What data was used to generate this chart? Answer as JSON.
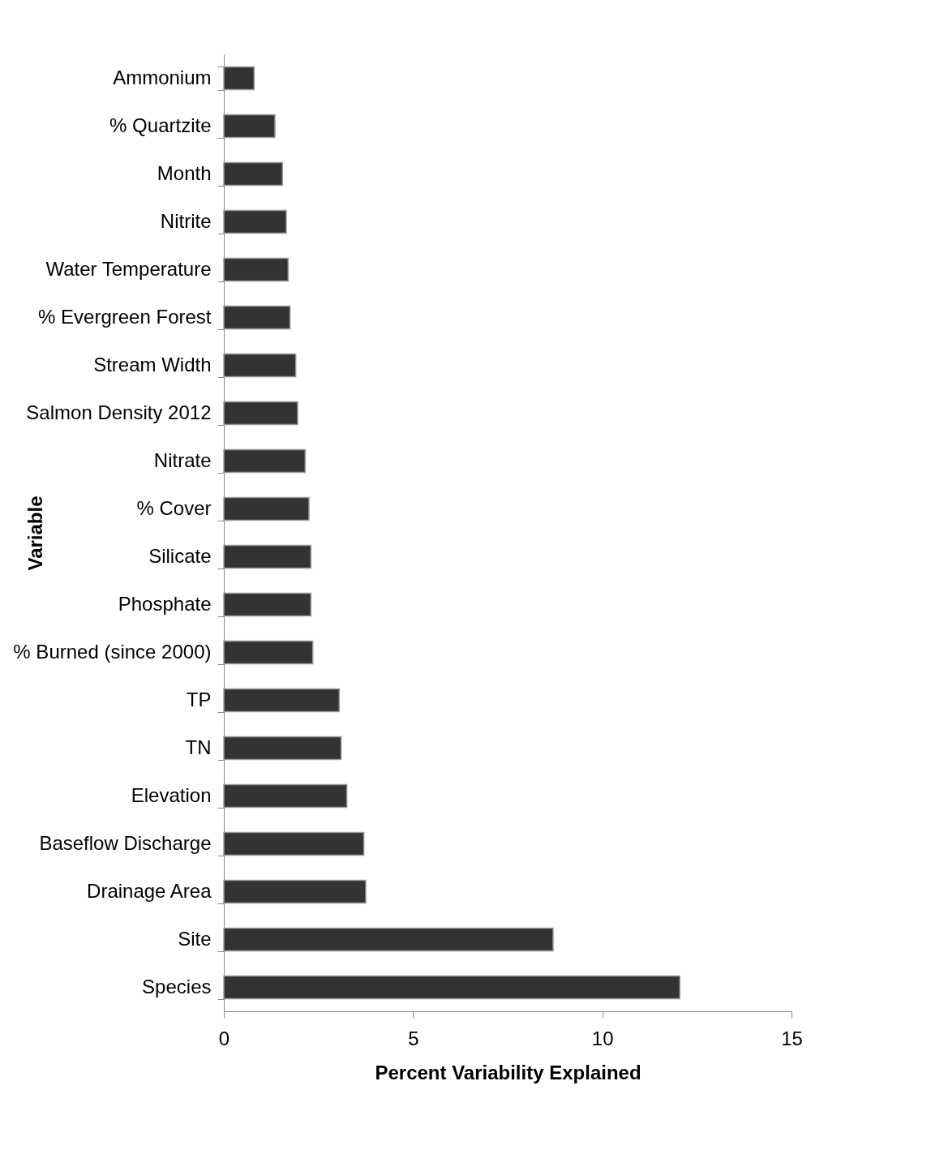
{
  "chart_data": {
    "type": "bar",
    "orientation": "horizontal",
    "xlabel": "Percent Variability Explained",
    "ylabel": "Variable",
    "categories": [
      "Ammonium",
      "% Quartzite",
      "Month",
      "Nitrite",
      "Water Temperature",
      "% Evergreen Forest",
      "Stream Width",
      "Salmon Density 2012",
      "Nitrate",
      "% Cover",
      "Silicate",
      "Phosphate",
      "% Burned (since 2000)",
      "TP",
      "TN",
      "Elevation",
      "Baseflow Discharge",
      "Drainage Area",
      "Site",
      "Species"
    ],
    "values": [
      0.8,
      1.35,
      1.55,
      1.65,
      1.7,
      1.75,
      1.9,
      1.95,
      2.15,
      2.25,
      2.3,
      2.3,
      2.35,
      3.05,
      3.1,
      3.25,
      3.7,
      3.75,
      8.7,
      12.05
    ],
    "color": "#333333",
    "xlim": [
      0,
      15
    ],
    "xticks": [
      0,
      5,
      10,
      15
    ]
  }
}
